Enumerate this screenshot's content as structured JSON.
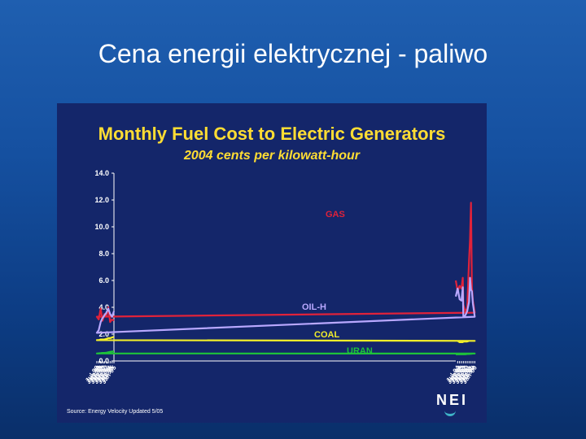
{
  "slide": {
    "title": "Cena energii elektrycznej - paliwo"
  },
  "footer": {
    "source": "Source:  Energy Velocity   Updated 5/05",
    "logo_text": "NEI"
  },
  "colors": {
    "gas": "#e0223a",
    "oil": "#b9a8ff",
    "coal": "#f2ee2a",
    "uran": "#1ec23a",
    "title": "#ffdd33"
  },
  "chart_data": {
    "type": "line",
    "title": "Monthly Fuel Cost to Electric Generators",
    "subtitle": "2004 cents per kilowatt-hour",
    "xlabel": "",
    "ylabel": "",
    "ylim": [
      0,
      14
    ],
    "yticks": [
      "0.0",
      "2.0",
      "4.0",
      "6.0",
      "8.0",
      "10.0",
      "12.0",
      "14.0"
    ],
    "x_tick_labels": [
      "Jan-95",
      "Jul-95",
      "Jan-96",
      "Jul-96",
      "Jan-97",
      "Jul-97",
      "Jan-98",
      "Jul-98",
      "Jan-99",
      "Jul-99",
      "Jan-00",
      "Jul-00",
      "Jan-01",
      "Jul-01",
      "Jan-02",
      "Jul-02",
      "Jan-03",
      "Jul-03",
      "Jan-04",
      "Jul-04"
    ],
    "x_points": [
      "Jan-95",
      "Jul-95",
      "Jan-96",
      "Jul-96",
      "Jan-97",
      "Jul-97",
      "Jan-98",
      "Jul-98",
      "Jan-99",
      "Jul-99",
      "Jan-00",
      "Jul-00",
      "Oct-00",
      "Jan-01",
      "Apr-01",
      "Jul-01",
      "Jan-02",
      "Jul-02",
      "Jan-03",
      "Mar-03",
      "Jul-03",
      "Jan-04",
      "Jul-04",
      "Jan-05"
    ],
    "grid": false,
    "legend": "inline labels",
    "series": [
      {
        "name": "GAS",
        "color": "#e0223a",
        "values": [
          3.0,
          3.1,
          2.9,
          4.0,
          3.3,
          3.5,
          3.0,
          3.9,
          3.1,
          3.3,
          3.6,
          4.5,
          5.5,
          11.8,
          9.0,
          7.5,
          3.9,
          3.7,
          4.2,
          6.2,
          5.4,
          5.6,
          5.2,
          6.0
        ]
      },
      {
        "name": "OIL-H",
        "color": "#b9a8ff",
        "values": [
          3.7,
          3.3,
          3.5,
          3.9,
          3.6,
          3.4,
          3.2,
          2.9,
          2.3,
          2.1,
          3.3,
          4.3,
          5.2,
          5.3,
          6.2,
          4.4,
          3.7,
          3.4,
          3.3,
          5.5,
          4.5,
          4.6,
          5.4,
          4.8
        ]
      },
      {
        "name": "COAL",
        "color": "#f2ee2a",
        "values": [
          1.8,
          1.75,
          1.7,
          1.7,
          1.65,
          1.6,
          1.6,
          1.6,
          1.55,
          1.55,
          1.5,
          1.5,
          1.5,
          1.5,
          1.5,
          1.5,
          1.45,
          1.45,
          1.45,
          1.4,
          1.4,
          1.4,
          1.5,
          1.5
        ]
      },
      {
        "name": "URAN",
        "color": "#1ec23a",
        "values": [
          0.7,
          0.7,
          0.68,
          0.65,
          0.62,
          0.6,
          0.6,
          0.58,
          0.57,
          0.56,
          0.55,
          0.55,
          0.54,
          0.54,
          0.53,
          0.52,
          0.52,
          0.5,
          0.5,
          0.5,
          0.5,
          0.5,
          0.5,
          0.5
        ]
      }
    ]
  }
}
